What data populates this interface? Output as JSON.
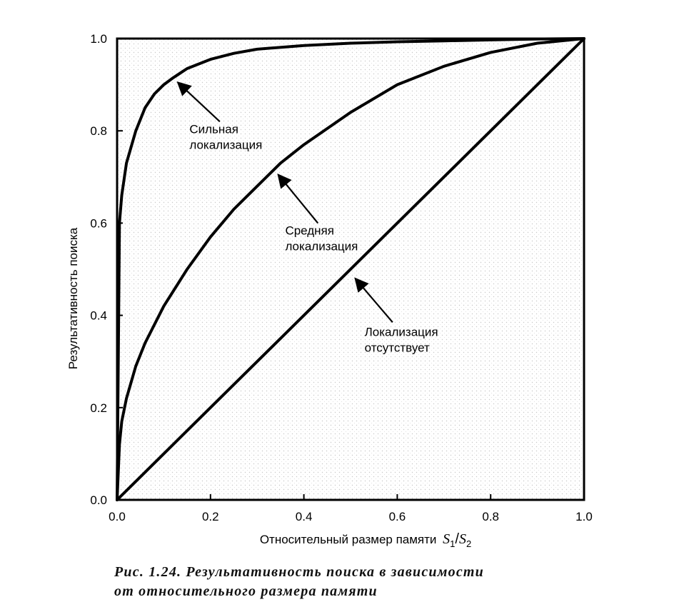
{
  "chart_data": {
    "type": "line",
    "xlabel": "Относительный размер памяти",
    "xlabel_math": {
      "s1": "S",
      "sub1": "1",
      "slash": "/",
      "s2": "S",
      "sub2": "2"
    },
    "ylabel": "Результативность поиска",
    "xlim": [
      0.0,
      1.0
    ],
    "ylim": [
      0.0,
      1.0
    ],
    "xticks": [
      "0.0",
      "0.2",
      "0.4",
      "0.6",
      "0.8",
      "1.0"
    ],
    "yticks": [
      "0.0",
      "0.2",
      "0.4",
      "0.6",
      "0.8",
      "1.0"
    ],
    "grid": false,
    "series": [
      {
        "name": "Сильная локализация",
        "x": [
          0,
          0.005,
          0.01,
          0.02,
          0.04,
          0.06,
          0.08,
          0.1,
          0.12,
          0.15,
          0.2,
          0.25,
          0.3,
          0.4,
          0.5,
          0.6,
          0.7,
          0.8,
          0.9,
          1.0
        ],
        "y": [
          0,
          0.6,
          0.66,
          0.73,
          0.8,
          0.85,
          0.88,
          0.9,
          0.915,
          0.935,
          0.955,
          0.968,
          0.977,
          0.985,
          0.99,
          0.993,
          0.995,
          0.997,
          0.999,
          1.0
        ]
      },
      {
        "name": "Средняя локализация",
        "x": [
          0,
          0.005,
          0.01,
          0.02,
          0.04,
          0.06,
          0.08,
          0.1,
          0.15,
          0.2,
          0.25,
          0.3,
          0.35,
          0.4,
          0.5,
          0.6,
          0.7,
          0.8,
          0.9,
          1.0
        ],
        "y": [
          0,
          0.12,
          0.17,
          0.22,
          0.29,
          0.34,
          0.38,
          0.42,
          0.5,
          0.57,
          0.63,
          0.68,
          0.73,
          0.77,
          0.84,
          0.9,
          0.94,
          0.97,
          0.99,
          1.0
        ]
      },
      {
        "name": "Локализация отсутствует",
        "x": [
          0,
          1.0
        ],
        "y": [
          0,
          1.0
        ]
      }
    ],
    "annotations": [
      {
        "id": "strong",
        "lines": [
          "Сильная",
          "локализация"
        ],
        "text_pos": [
          0.155,
          0.795
        ],
        "arrow_from": [
          0.22,
          0.82
        ],
        "arrow_to": [
          0.13,
          0.905
        ]
      },
      {
        "id": "medium",
        "lines": [
          "Средняя",
          "локализация"
        ],
        "text_pos": [
          0.36,
          0.575
        ],
        "arrow_from": [
          0.43,
          0.6
        ],
        "arrow_to": [
          0.345,
          0.705
        ]
      },
      {
        "id": "none",
        "lines": [
          "Локализация",
          "отсутствует"
        ],
        "text_pos": [
          0.53,
          0.355
        ],
        "arrow_from": [
          0.59,
          0.385
        ],
        "arrow_to": [
          0.51,
          0.48
        ]
      }
    ]
  },
  "caption": {
    "line1": "Рис. 1.24. Результативность поиска в зависимости",
    "line2": "от относительного размера памяти"
  }
}
